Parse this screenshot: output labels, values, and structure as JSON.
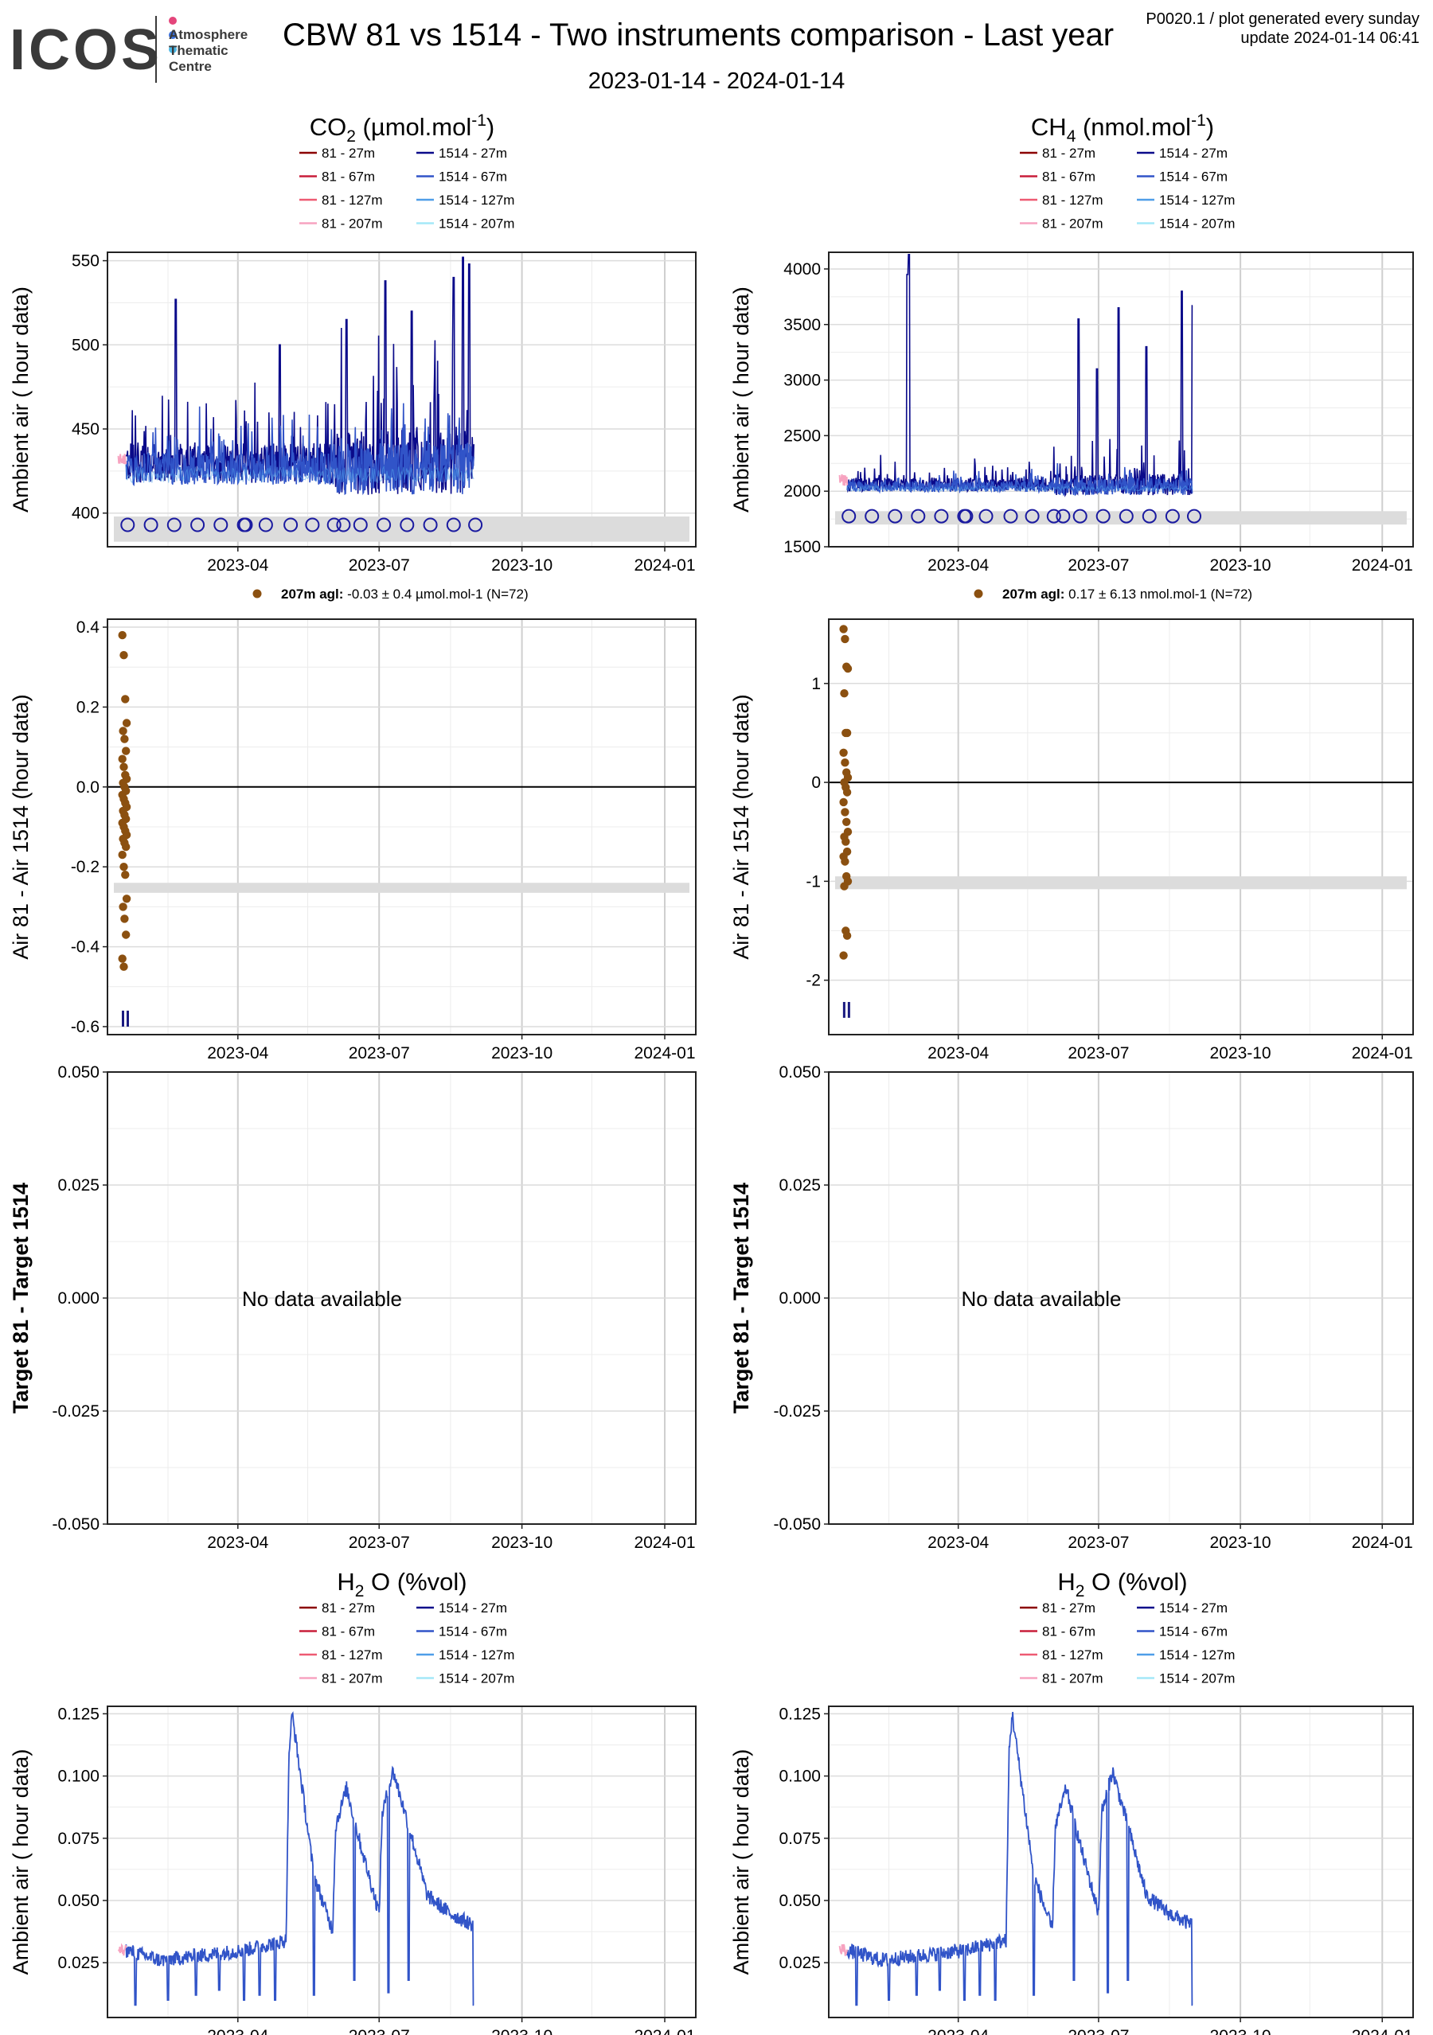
{
  "header": {
    "logo_text": "ICOS",
    "logo_subtitle": "Atmosphere\nThematic\nCentre",
    "logo_dot_colors": [
      "#e4457b",
      "#3a6fd8",
      "#4bb8e6"
    ],
    "title": "CBW 81 vs 1514 - Two instruments comparison - Last year",
    "date_range": "2023-01-14 - 2024-01-14",
    "meta_line1": "P0020.1 / plot generated every sunday",
    "meta_line2": "update  2024-01-14 06:41"
  },
  "panel_titles": {
    "co2": "CO2 (µmol.mol-1)",
    "ch4": "CH4 (nmol.mol-1)",
    "h2o": "H2O (%vol)"
  },
  "legend_entries": [
    {
      "label": "81 - 27m",
      "color": "#8b0000"
    },
    {
      "label": "81 - 67m",
      "color": "#c81e3a"
    },
    {
      "label": "81 - 127m",
      "color": "#ee5a72"
    },
    {
      "label": "81 - 207m",
      "color": "#f7a3c0"
    },
    {
      "label": "1514 - 27m",
      "color": "#0a0a8a"
    },
    {
      "label": "1514 - 67m",
      "color": "#3154c8"
    },
    {
      "label": "1514 - 127m",
      "color": "#4f9ee8"
    },
    {
      "label": "1514 - 207m",
      "color": "#a4e8f8"
    }
  ],
  "x_ticks": [
    "2023-04",
    "2023-07",
    "2023-10",
    "2024-01"
  ],
  "no_data_text": "No data available",
  "diff_legend": {
    "co2_bold": "207m agl:",
    "co2_text": "-0.03 ± 0.4 µmol.mol-1   (N=72)",
    "ch4_bold": "207m agl:",
    "ch4_text": "0.17 ± 6.13 nmol.mol-1   (N=72)",
    "color": "#8b5010"
  },
  "ylabels": {
    "ambient": "Ambient air ( hour data)",
    "diff": "Air 81 - Air 1514 (hour data)",
    "target": "Target 81 - Target 1514"
  },
  "chart_data": [
    {
      "id": "co2-ambient",
      "type": "line",
      "ylabel": "Ambient air ( hour data)",
      "ylim": [
        380,
        555
      ],
      "yticks": [
        400,
        450,
        500,
        550
      ],
      "x_range": [
        "2023-01-14",
        "2024-01-14"
      ],
      "series": [
        {
          "name": "1514 - 27m",
          "x_start": "2023-01-19",
          "x_end": "2023-08-31",
          "baseline": 430,
          "spread": 12,
          "spikes": [
            [
              "2023-02-20",
              527
            ],
            [
              "2023-04-28",
              500
            ],
            [
              "2023-06-10",
              515
            ],
            [
              "2023-07-05",
              538
            ],
            [
              "2023-07-22",
              520
            ],
            [
              "2023-08-18",
              540
            ],
            [
              "2023-08-24",
              552
            ],
            [
              "2023-08-28",
              548
            ]
          ]
        },
        {
          "name": "81 - 207m",
          "x_start": "2023-01-14",
          "x_end": "2023-01-19",
          "baseline": 432
        }
      ],
      "markers": {
        "y": 393,
        "dates": [
          "2023-01-20",
          "2023-02-04",
          "2023-02-19",
          "2023-03-06",
          "2023-03-21",
          "2023-04-05",
          "2023-04-06",
          "2023-04-19",
          "2023-05-05",
          "2023-05-19",
          "2023-06-02",
          "2023-06-08",
          "2023-06-19",
          "2023-07-04",
          "2023-07-19",
          "2023-08-03",
          "2023-08-18",
          "2023-09-01"
        ]
      },
      "band": [
        383,
        398
      ]
    },
    {
      "id": "ch4-ambient",
      "type": "line",
      "ylabel": "Ambient air ( hour data)",
      "ylim": [
        1500,
        4150
      ],
      "yticks": [
        1500,
        2000,
        2500,
        3000,
        3500,
        4000
      ],
      "x_range": [
        "2023-01-14",
        "2024-01-14"
      ],
      "series": [
        {
          "name": "1514 - 27m",
          "x_start": "2023-01-19",
          "x_end": "2023-08-31",
          "baseline": 2060,
          "spread": 60,
          "spikes": [
            [
              "2023-02-27",
              3950
            ],
            [
              "2023-02-28",
              4130
            ],
            [
              "2023-06-18",
              3550
            ],
            [
              "2023-06-30",
              3100
            ],
            [
              "2023-07-14",
              3650
            ],
            [
              "2023-08-01",
              3300
            ],
            [
              "2023-08-24",
              3800
            ],
            [
              "2023-08-31",
              3670
            ]
          ]
        },
        {
          "name": "81 - 207m",
          "x_start": "2023-01-14",
          "x_end": "2023-01-19",
          "baseline": 2100
        }
      ],
      "markers": {
        "y": 1775,
        "dates": [
          "2023-01-20",
          "2023-02-04",
          "2023-02-19",
          "2023-03-06",
          "2023-03-21",
          "2023-04-05",
          "2023-04-06",
          "2023-04-19",
          "2023-05-05",
          "2023-05-19",
          "2023-06-02",
          "2023-06-08",
          "2023-06-19",
          "2023-07-04",
          "2023-07-19",
          "2023-08-03",
          "2023-08-18",
          "2023-09-01"
        ]
      },
      "band": [
        1700,
        1820
      ]
    },
    {
      "id": "co2-diff",
      "type": "scatter",
      "ylabel": "Air 81 - Air 1514 (hour data)",
      "ylim": [
        -0.62,
        0.42
      ],
      "yticks": [
        -0.6,
        -0.4,
        -0.2,
        0.0,
        0.2,
        0.4
      ],
      "ytick_labels": [
        "-0.6",
        "-0.4",
        "-0.2",
        "0.0",
        "0.2",
        "0.4"
      ],
      "x_range": [
        "2023-01-14",
        "2024-01-14"
      ],
      "hline": 0,
      "band": [
        -0.265,
        -0.24
      ],
      "series": [
        {
          "name": "207m agl",
          "x": "2023-01-18",
          "y": [
            0.38,
            0.33,
            0.22,
            0.16,
            0.14,
            0.12,
            0.09,
            0.07,
            0.05,
            0.03,
            0.02,
            0.01,
            0.0,
            -0.01,
            -0.02,
            -0.03,
            -0.04,
            -0.05,
            -0.06,
            -0.07,
            -0.08,
            -0.09,
            -0.1,
            -0.11,
            -0.12,
            -0.13,
            -0.14,
            -0.15,
            -0.17,
            -0.2,
            -0.22,
            -0.28,
            -0.3,
            -0.33,
            -0.37,
            -0.43,
            -0.45
          ]
        }
      ],
      "bars": {
        "color": "#1a1a80",
        "y": [
          -0.6,
          -0.56
        ]
      }
    },
    {
      "id": "ch4-diff",
      "type": "scatter",
      "ylabel": "Air 81 - Air 1514 (hour data)",
      "ylim": [
        -2.55,
        1.65
      ],
      "yticks": [
        -2,
        -1,
        0,
        1
      ],
      "ytick_labels": [
        "-2",
        "-1",
        "0",
        "1"
      ],
      "x_range": [
        "2023-01-14",
        "2024-01-14"
      ],
      "hline": 0,
      "band": [
        -1.08,
        -0.95
      ],
      "series": [
        {
          "name": "207m agl",
          "x": "2023-01-18",
          "y": [
            1.55,
            1.45,
            1.17,
            1.15,
            0.9,
            0.5,
            0.5,
            0.3,
            0.2,
            0.1,
            0.05,
            0.0,
            -0.05,
            -0.1,
            -0.2,
            -0.3,
            -0.4,
            -0.5,
            -0.55,
            -0.6,
            -0.7,
            -0.75,
            -0.8,
            -0.95,
            -1.0,
            -1.05,
            -1.5,
            -1.55,
            -1.75
          ]
        }
      ],
      "bars": {
        "color": "#1a1a80",
        "y": [
          -2.38,
          -2.22
        ]
      }
    },
    {
      "id": "co2-target",
      "type": "scatter",
      "ylabel": "Target 81 - Target 1514",
      "ylim": [
        -0.05,
        0.05
      ],
      "yticks": [
        -0.05,
        -0.025,
        0.0,
        0.025,
        0.05
      ],
      "ytick_labels": [
        "-0.050",
        "-0.025",
        "0.000",
        "0.025",
        "0.050"
      ],
      "x_range": [
        "2023-01-14",
        "2024-01-14"
      ],
      "series": []
    },
    {
      "id": "ch4-target",
      "type": "scatter",
      "ylabel": "Target 81 - Target 1514",
      "ylim": [
        -0.05,
        0.05
      ],
      "yticks": [
        -0.05,
        -0.025,
        0.0,
        0.025,
        0.05
      ],
      "ytick_labels": [
        "-0.050",
        "-0.025",
        "0.000",
        "0.025",
        "0.050"
      ],
      "x_range": [
        "2023-01-14",
        "2024-01-14"
      ],
      "series": []
    },
    {
      "id": "h2o-ambient-left",
      "type": "line",
      "ylabel": "Ambient air ( hour data)",
      "ylim": [
        0.003,
        0.128
      ],
      "yticks": [
        0.025,
        0.05,
        0.075,
        0.1,
        0.125
      ],
      "ytick_labels": [
        "0.025",
        "0.050",
        "0.075",
        "0.100",
        "0.125"
      ],
      "x_range": [
        "2023-01-14",
        "2024-01-14"
      ],
      "series": [
        {
          "name": "1514 - 67m",
          "profile": [
            [
              "2023-01-19",
              0.03
            ],
            [
              "2023-02-10",
              0.026
            ],
            [
              "2023-03-10",
              0.028
            ],
            [
              "2023-04-05",
              0.03
            ],
            [
              "2023-05-02",
              0.034
            ],
            [
              "2023-05-04",
              0.11
            ],
            [
              "2023-05-06",
              0.125
            ],
            [
              "2023-05-20",
              0.06
            ],
            [
              "2023-06-01",
              0.038
            ],
            [
              "2023-06-03",
              0.08
            ],
            [
              "2023-06-10",
              0.095
            ],
            [
              "2023-06-20",
              0.07
            ],
            [
              "2023-07-01",
              0.045
            ],
            [
              "2023-07-03",
              0.085
            ],
            [
              "2023-07-10",
              0.102
            ],
            [
              "2023-07-20",
              0.08
            ],
            [
              "2023-08-01",
              0.052
            ],
            [
              "2023-08-15",
              0.045
            ],
            [
              "2023-08-31",
              0.04
            ]
          ],
          "dips": [
            [
              "2023-01-25",
              0.008
            ],
            [
              "2023-02-15",
              0.01
            ],
            [
              "2023-03-05",
              0.012
            ],
            [
              "2023-03-20",
              0.014
            ],
            [
              "2023-04-05",
              0.01
            ],
            [
              "2023-04-15",
              0.012
            ],
            [
              "2023-04-25",
              0.01
            ],
            [
              "2023-05-20",
              0.012
            ],
            [
              "2023-06-15",
              0.018
            ],
            [
              "2023-07-07",
              0.013
            ],
            [
              "2023-07-20",
              0.018
            ],
            [
              "2023-08-31",
              0.008
            ]
          ]
        },
        {
          "name": "81 - 207m",
          "x_start": "2023-01-14",
          "x_end": "2023-01-19",
          "baseline": 0.03
        }
      ]
    },
    {
      "id": "h2o-ambient-right",
      "type": "line",
      "ylabel": "Ambient air ( hour data)",
      "ylim": [
        0.003,
        0.128
      ],
      "yticks": [
        0.025,
        0.05,
        0.075,
        0.1,
        0.125
      ],
      "ytick_labels": [
        "0.025",
        "0.050",
        "0.075",
        "0.100",
        "0.125"
      ],
      "x_range": [
        "2023-01-14",
        "2024-01-14"
      ],
      "series": [
        {
          "name": "1514 - 67m",
          "profile": [
            [
              "2023-01-19",
              0.03
            ],
            [
              "2023-02-10",
              0.026
            ],
            [
              "2023-03-10",
              0.028
            ],
            [
              "2023-04-05",
              0.03
            ],
            [
              "2023-05-02",
              0.034
            ],
            [
              "2023-05-04",
              0.11
            ],
            [
              "2023-05-06",
              0.125
            ],
            [
              "2023-05-20",
              0.06
            ],
            [
              "2023-06-01",
              0.038
            ],
            [
              "2023-06-03",
              0.08
            ],
            [
              "2023-06-10",
              0.095
            ],
            [
              "2023-06-20",
              0.07
            ],
            [
              "2023-07-01",
              0.045
            ],
            [
              "2023-07-03",
              0.085
            ],
            [
              "2023-07-10",
              0.102
            ],
            [
              "2023-07-20",
              0.08
            ],
            [
              "2023-08-01",
              0.052
            ],
            [
              "2023-08-15",
              0.045
            ],
            [
              "2023-08-31",
              0.04
            ]
          ],
          "dips": [
            [
              "2023-01-25",
              0.008
            ],
            [
              "2023-02-15",
              0.01
            ],
            [
              "2023-03-05",
              0.012
            ],
            [
              "2023-03-20",
              0.014
            ],
            [
              "2023-04-05",
              0.01
            ],
            [
              "2023-04-15",
              0.012
            ],
            [
              "2023-04-25",
              0.01
            ],
            [
              "2023-05-20",
              0.012
            ],
            [
              "2023-06-15",
              0.018
            ],
            [
              "2023-07-07",
              0.013
            ],
            [
              "2023-07-20",
              0.018
            ],
            [
              "2023-08-31",
              0.008
            ]
          ]
        },
        {
          "name": "81 - 207m",
          "x_start": "2023-01-14",
          "x_end": "2023-01-19",
          "baseline": 0.03
        }
      ]
    }
  ]
}
